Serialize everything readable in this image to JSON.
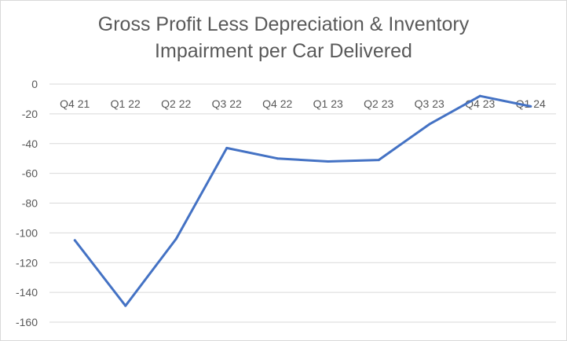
{
  "chart_data": {
    "type": "line",
    "title_line1": "Gross Profit Less Depreciation & Inventory",
    "title_line2": "Impairment per Car Delivered",
    "categories": [
      "Q4 21",
      "Q1 22",
      "Q2 22",
      "Q3 22",
      "Q4 22",
      "Q1 23",
      "Q2 23",
      "Q3 23",
      "Q4 23",
      "Q1 24"
    ],
    "series": [
      {
        "values": [
          -105,
          -149,
          -104,
          -43,
          -50,
          -52,
          -51,
          -27,
          -8,
          -15
        ]
      }
    ],
    "yticks": [
      0,
      -20,
      -40,
      -60,
      -80,
      -100,
      -120,
      -140,
      -160
    ],
    "ylim": [
      -160,
      0
    ],
    "grid": true,
    "line_color": "#4472c4",
    "grid_color": "#d9d9d9"
  }
}
